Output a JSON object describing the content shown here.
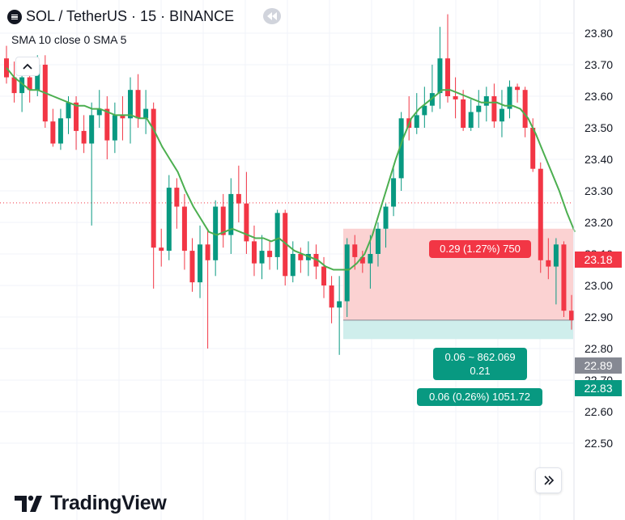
{
  "header": {
    "symbol": "SOL / TetherUS · 15 · BINANCE",
    "indicator_name": "SMA 10 close 0 SMA 5"
  },
  "brand": {
    "name": "TradingView"
  },
  "icons": [
    "menu-icon",
    "rewind-icon",
    "chevron-up-icon",
    "chevron-double-right-icon",
    "tradingview-logo-icon"
  ],
  "colors": {
    "up": "#089981",
    "down": "#f23645",
    "sma": "#4caf50",
    "stop_zone": "#fbd2d2",
    "target_zone": "#cfeeec",
    "grid": "#f0f3fa",
    "axis_text": "#131722"
  },
  "position_tool": {
    "stop_label": "0.29 (1.27%) 750",
    "target_box_line1": "0.06 ~ 862.069",
    "target_box_line2": "0.21",
    "target_label": "0.06 (0.26%) 1051.72",
    "entry_price": 22.89,
    "stop_price": 23.18,
    "target_price": 22.83
  },
  "price_tags": {
    "stop": "23.18",
    "entry": "22.89",
    "target": "22.83"
  },
  "chart_data": {
    "type": "candlestick",
    "y_ticks": [
      "23.80",
      "23.70",
      "23.60",
      "23.50",
      "23.40",
      "23.30",
      "23.20",
      "23.10",
      "23.00",
      "22.90",
      "22.80",
      "22.70",
      "22.60",
      "22.50"
    ],
    "ylim": [
      22.48,
      23.92
    ],
    "reference_line": 23.262,
    "grid": true,
    "candles": [
      [
        23.72,
        23.66,
        23.76,
        23.64
      ],
      [
        23.66,
        23.61,
        23.71,
        23.58
      ],
      [
        23.61,
        23.66,
        23.7,
        23.55
      ],
      [
        23.66,
        23.62,
        23.72,
        23.58
      ],
      [
        23.62,
        23.7,
        23.73,
        23.6
      ],
      [
        23.7,
        23.52,
        23.73,
        23.5
      ],
      [
        23.52,
        23.45,
        23.56,
        23.44
      ],
      [
        23.45,
        23.53,
        23.56,
        23.43
      ],
      [
        23.53,
        23.58,
        23.6,
        23.48
      ],
      [
        23.58,
        23.49,
        23.6,
        23.43
      ],
      [
        23.49,
        23.45,
        23.54,
        23.42
      ],
      [
        23.45,
        23.54,
        23.58,
        23.19
      ],
      [
        23.54,
        23.56,
        23.62,
        23.5
      ],
      [
        23.56,
        23.46,
        23.6,
        23.4
      ],
      [
        23.46,
        23.54,
        23.58,
        23.42
      ],
      [
        23.54,
        23.53,
        23.6,
        23.46
      ],
      [
        23.53,
        23.62,
        23.66,
        23.45
      ],
      [
        23.62,
        23.53,
        23.67,
        23.5
      ],
      [
        23.53,
        23.56,
        23.62,
        23.48
      ],
      [
        23.56,
        23.12,
        23.58,
        22.99
      ],
      [
        23.12,
        23.11,
        23.18,
        23.06
      ],
      [
        23.11,
        23.31,
        23.35,
        23.08
      ],
      [
        23.31,
        23.25,
        23.34,
        23.18
      ],
      [
        23.25,
        23.11,
        23.29,
        23.05
      ],
      [
        23.11,
        23.01,
        23.15,
        22.98
      ],
      [
        23.01,
        23.13,
        23.19,
        22.96
      ],
      [
        23.13,
        23.08,
        23.18,
        22.8
      ],
      [
        23.08,
        23.25,
        23.27,
        23.03
      ],
      [
        23.25,
        23.16,
        23.29,
        23.12
      ],
      [
        23.16,
        23.29,
        23.34,
        23.1
      ],
      [
        23.29,
        23.26,
        23.38,
        23.2
      ],
      [
        23.26,
        23.14,
        23.36,
        23.1
      ],
      [
        23.14,
        23.07,
        23.19,
        23.03
      ],
      [
        23.07,
        23.11,
        23.16,
        23.02
      ],
      [
        23.11,
        23.09,
        23.14,
        23.05
      ],
      [
        23.09,
        23.23,
        23.24,
        23.05
      ],
      [
        23.23,
        23.03,
        23.24,
        23.0
      ],
      [
        23.03,
        23.1,
        23.14,
        23.01
      ],
      [
        23.1,
        23.08,
        23.12,
        23.04
      ],
      [
        23.08,
        23.1,
        23.14,
        23.03
      ],
      [
        23.1,
        23.06,
        23.13,
        23.02
      ],
      [
        23.06,
        23.0,
        23.09,
        22.96
      ],
      [
        23.0,
        22.93,
        23.03,
        22.88
      ],
      [
        22.93,
        22.95,
        23.03,
        22.78
      ],
      [
        22.95,
        23.13,
        23.15,
        22.9
      ],
      [
        23.13,
        23.09,
        23.16,
        23.05
      ],
      [
        23.09,
        23.07,
        23.11,
        23.04
      ],
      [
        23.07,
        23.1,
        23.16,
        22.99
      ],
      [
        23.1,
        23.18,
        23.2,
        23.06
      ],
      [
        23.18,
        23.25,
        23.26,
        23.12
      ],
      [
        23.25,
        23.34,
        23.38,
        23.22
      ],
      [
        23.34,
        23.53,
        23.55,
        23.3
      ],
      [
        23.53,
        23.5,
        23.6,
        23.46
      ],
      [
        23.5,
        23.54,
        23.61,
        23.48
      ],
      [
        23.54,
        23.57,
        23.63,
        23.5
      ],
      [
        23.57,
        23.61,
        23.7,
        23.55
      ],
      [
        23.61,
        23.72,
        23.82,
        23.56
      ],
      [
        23.72,
        23.6,
        23.86,
        23.58
      ],
      [
        23.6,
        23.59,
        23.66,
        23.53
      ],
      [
        23.59,
        23.5,
        23.62,
        23.49
      ],
      [
        23.5,
        23.55,
        23.59,
        23.49
      ],
      [
        23.55,
        23.57,
        23.62,
        23.5
      ],
      [
        23.57,
        23.6,
        23.63,
        23.52
      ],
      [
        23.6,
        23.52,
        23.64,
        23.5
      ],
      [
        23.52,
        23.56,
        23.62,
        23.47
      ],
      [
        23.56,
        23.63,
        23.65,
        23.53
      ],
      [
        23.63,
        23.62,
        23.64,
        23.58
      ],
      [
        23.62,
        23.5,
        23.63,
        23.47
      ],
      [
        23.5,
        23.37,
        23.53,
        23.36
      ],
      [
        23.37,
        23.08,
        23.39,
        23.04
      ],
      [
        23.08,
        23.06,
        23.15,
        23.02
      ],
      [
        23.06,
        23.13,
        23.15,
        22.94
      ],
      [
        23.13,
        22.92,
        23.14,
        22.9
      ],
      [
        22.92,
        22.89,
        22.97,
        22.86
      ]
    ],
    "candle_format": [
      "open",
      "close",
      "high",
      "low"
    ],
    "series": [
      {
        "name": "SMA 10 close 0 SMA 5",
        "values": [
          23.69,
          23.66,
          23.64,
          23.62,
          23.62,
          23.61,
          23.6,
          23.59,
          23.58,
          23.57,
          23.57,
          23.56,
          23.56,
          23.55,
          23.54,
          23.54,
          23.54,
          23.53,
          23.53,
          23.49,
          23.44,
          23.4,
          23.36,
          23.3,
          23.25,
          23.21,
          23.17,
          23.16,
          23.17,
          23.18,
          23.17,
          23.16,
          23.15,
          23.15,
          23.14,
          23.15,
          23.13,
          23.11,
          23.1,
          23.09,
          23.08,
          23.06,
          23.05,
          23.05,
          23.05,
          23.07,
          23.1,
          23.16,
          23.24,
          23.32,
          23.4,
          23.47,
          23.53,
          23.56,
          23.58,
          23.6,
          23.62,
          23.62,
          23.61,
          23.6,
          23.59,
          23.58,
          23.58,
          23.58,
          23.57,
          23.57,
          23.56,
          23.53,
          23.48,
          23.42,
          23.36,
          23.3,
          23.23,
          23.17
        ]
      }
    ]
  }
}
